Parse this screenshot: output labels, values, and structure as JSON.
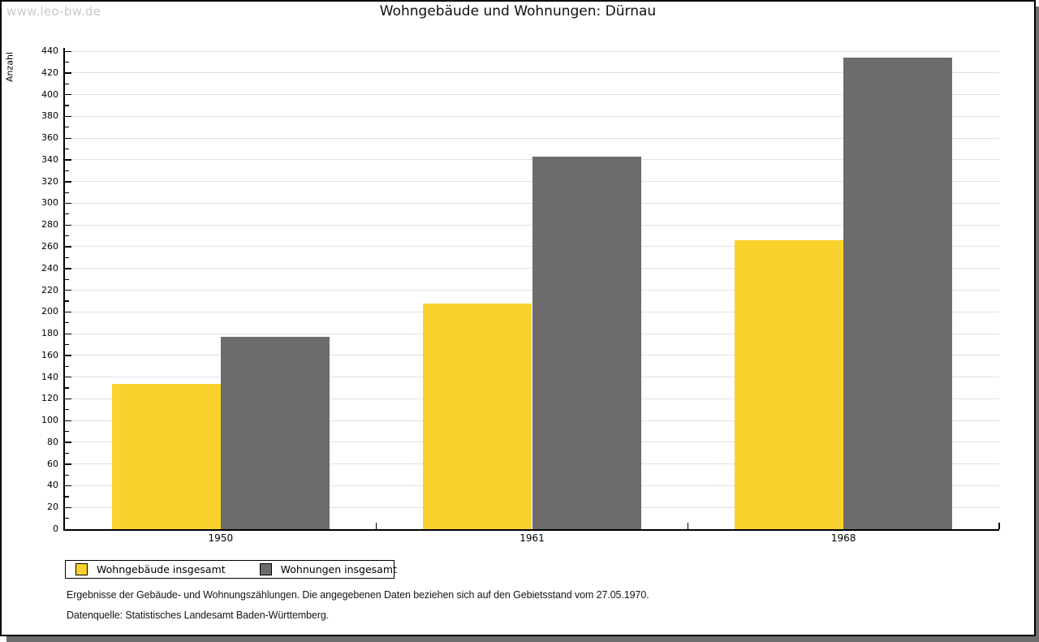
{
  "watermark": "www.leo-bw.de",
  "chart_data": {
    "type": "bar",
    "title": "Wohngebäude und Wohnungen: Dürnau",
    "ylabel": "Anzahl",
    "xlabel": "",
    "categories": [
      "1950",
      "1961",
      "1968"
    ],
    "series": [
      {
        "name": "Wohngebäude insgesamt",
        "color": "#FBD22D",
        "values": [
          134,
          208,
          266
        ]
      },
      {
        "name": "Wohnungen insgesamt",
        "color": "#6C6C6C",
        "values": [
          177,
          343,
          434
        ]
      }
    ],
    "ylim": [
      0,
      440
    ],
    "ytick_major": 20,
    "ytick_minor": 10,
    "grid": "horizontal",
    "gridline_color": "#e0e0e0",
    "legend_position": "bottom-left"
  },
  "footnotes": {
    "line1": "Ergebnisse der Gebäude- und Wohnungszählungen. Die angegebenen Daten beziehen sich auf den Gebietsstand vom 27.05.1970.",
    "line2": "Datenquelle: Statistisches Landesamt Baden-Württemberg."
  }
}
